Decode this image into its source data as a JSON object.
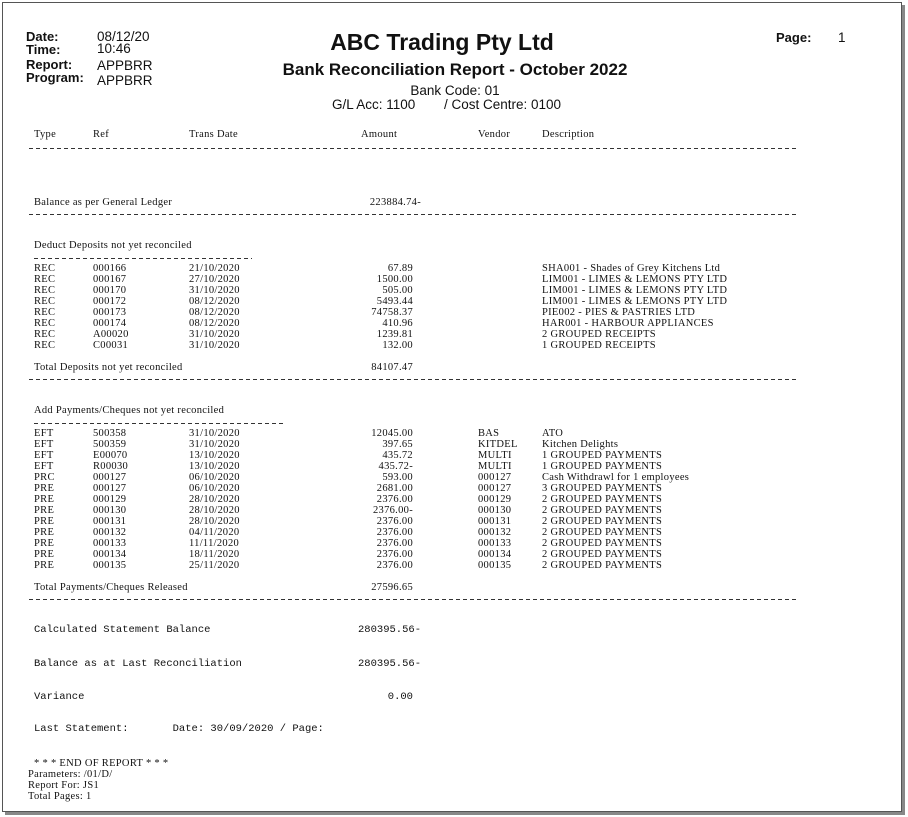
{
  "header": {
    "date_label": "Date:",
    "date": "08/12/20",
    "time_label": "Time:",
    "time": "10:46",
    "report_label": "Report:",
    "report": "APPBRR",
    "program_label": "Program:",
    "program": "APPBRR",
    "company": "ABC Trading Pty Ltd",
    "title": "Bank Reconciliation Report - October 2022",
    "bank_code": "Bank Code: 01",
    "gl_acc": "G/L Acc: 1100",
    "cost_centre": "/ Cost Centre: 0100",
    "page_label": "Page:",
    "page": "1"
  },
  "columns": [
    "Type",
    "Ref",
    "Trans Date",
    "Amount",
    "Vendor",
    "Description"
  ],
  "gl_balance": {
    "label": "Balance as per General Ledger",
    "amount": "223884.74-"
  },
  "deposits": {
    "title": "Deduct Deposits not yet reconciled",
    "rows": [
      [
        "REC",
        "000166",
        "21/10/2020",
        "67.89",
        "",
        "SHA001 - Shades of Grey Kitchens Ltd"
      ],
      [
        "REC",
        "000167",
        "27/10/2020",
        "1500.00",
        "",
        "LIM001 - LIMES & LEMONS PTY LTD"
      ],
      [
        "REC",
        "000170",
        "31/10/2020",
        "505.00",
        "",
        "LIM001 - LIMES & LEMONS PTY LTD"
      ],
      [
        "REC",
        "000172",
        "08/12/2020",
        "5493.44",
        "",
        "LIM001 - LIMES & LEMONS PTY LTD"
      ],
      [
        "REC",
        "000173",
        "08/12/2020",
        "74758.37",
        "",
        "PIE002 - PIES & PASTRIES LTD"
      ],
      [
        "REC",
        "000174",
        "08/12/2020",
        "410.96",
        "",
        "HAR001 - HARBOUR APPLIANCES"
      ],
      [
        "REC",
        "A00020",
        "31/10/2020",
        "1239.81",
        "",
        "2 GROUPED RECEIPTS"
      ],
      [
        "REC",
        "C00031",
        "31/10/2020",
        "132.00",
        "",
        "1 GROUPED RECEIPTS"
      ]
    ],
    "total_label": "Total Deposits not yet reconciled",
    "total": "84107.47"
  },
  "payments": {
    "title": "Add Payments/Cheques not yet reconciled",
    "rows": [
      [
        "EFT",
        "500358",
        "31/10/2020",
        "12045.00",
        "BAS",
        "ATO"
      ],
      [
        "EFT",
        "500359",
        "31/10/2020",
        "397.65",
        "KITDEL",
        "Kitchen Delights"
      ],
      [
        "EFT",
        "E00070",
        "13/10/2020",
        "435.72",
        "MULTI",
        "1 GROUPED PAYMENTS"
      ],
      [
        "EFT",
        "R00030",
        "13/10/2020",
        "435.72-",
        "MULTI",
        "1 GROUPED PAYMENTS"
      ],
      [
        "PRC",
        "000127",
        "06/10/2020",
        "593.00",
        "000127",
        "Cash Withdrawl for 1 employees"
      ],
      [
        "PRE",
        "000127",
        "06/10/2020",
        "2681.00",
        "000127",
        "3 GROUPED PAYMENTS"
      ],
      [
        "PRE",
        "000129",
        "28/10/2020",
        "2376.00",
        "000129",
        "2 GROUPED PAYMENTS"
      ],
      [
        "PRE",
        "000130",
        "28/10/2020",
        "2376.00-",
        "000130",
        "2 GROUPED PAYMENTS"
      ],
      [
        "PRE",
        "000131",
        "28/10/2020",
        "2376.00",
        "000131",
        "2 GROUPED PAYMENTS"
      ],
      [
        "PRE",
        "000132",
        "04/11/2020",
        "2376.00",
        "000132",
        "2 GROUPED PAYMENTS"
      ],
      [
        "PRE",
        "000133",
        "11/11/2020",
        "2376.00",
        "000133",
        "2 GROUPED PAYMENTS"
      ],
      [
        "PRE",
        "000134",
        "18/11/2020",
        "2376.00",
        "000134",
        "2 GROUPED PAYMENTS"
      ],
      [
        "PRE",
        "000135",
        "25/11/2020",
        "2376.00",
        "000135",
        "2 GROUPED PAYMENTS"
      ]
    ],
    "total_label": "Total Payments/Cheques Released",
    "total": "27596.65"
  },
  "summary": {
    "calc_label": "Calculated Statement Balance",
    "calc": "280395.56-",
    "last_label": "Balance as at Last Reconciliation",
    "last": "280395.56-",
    "variance_label": "Variance",
    "variance": "0.00",
    "last_statement": "Last Statement:       Date: 30/09/2020 / Page:"
  },
  "footer": {
    "end": "* * * END OF REPORT * * *",
    "parameters": "Parameters: /01/D/",
    "report_for": "Report For: JS1",
    "total_pages": "Total Pages: 1"
  }
}
